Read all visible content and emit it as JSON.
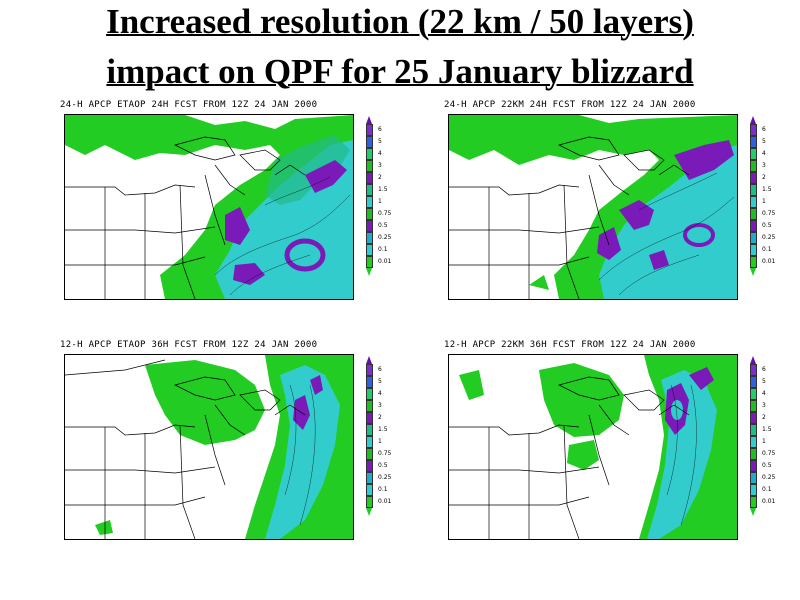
{
  "title": {
    "line1": "Increased resolution (22 km / 50 layers)",
    "line2": "impact on QPF for 25 January blizzard"
  },
  "panels": [
    {
      "label": "24-H APCP ETAOP 24H FCST FROM 12Z 24 JAN 2000"
    },
    {
      "label": "24-H APCP 22KM 24H FCST FROM 12Z 24 JAN 2000"
    },
    {
      "label": "12-H APCP ETAOP 36H FCST FROM 12Z 24 JAN 2000"
    },
    {
      "label": "12-H APCP 22KM 36H FCST FROM 12Z 24 JAN 2000"
    }
  ],
  "legend": {
    "levels": [
      "6",
      "5",
      "4",
      "3",
      "2",
      "1.5",
      "1",
      "0.75",
      "0.5",
      "0.25",
      "0.1",
      "0.01"
    ],
    "colors": [
      "#7a30c8",
      "#3060e0",
      "#22cc66",
      "#22bb22",
      "#7a1ab8",
      "#22bb88",
      "#33cccc",
      "#22bb22",
      "#7a1ab8",
      "#22aacc",
      "#33cccc",
      "#22cc22"
    ]
  },
  "colors": {
    "light": "#22cc22",
    "cyan": "#33cccc",
    "purple": "#7a1ab8",
    "blue": "#3060e0"
  }
}
